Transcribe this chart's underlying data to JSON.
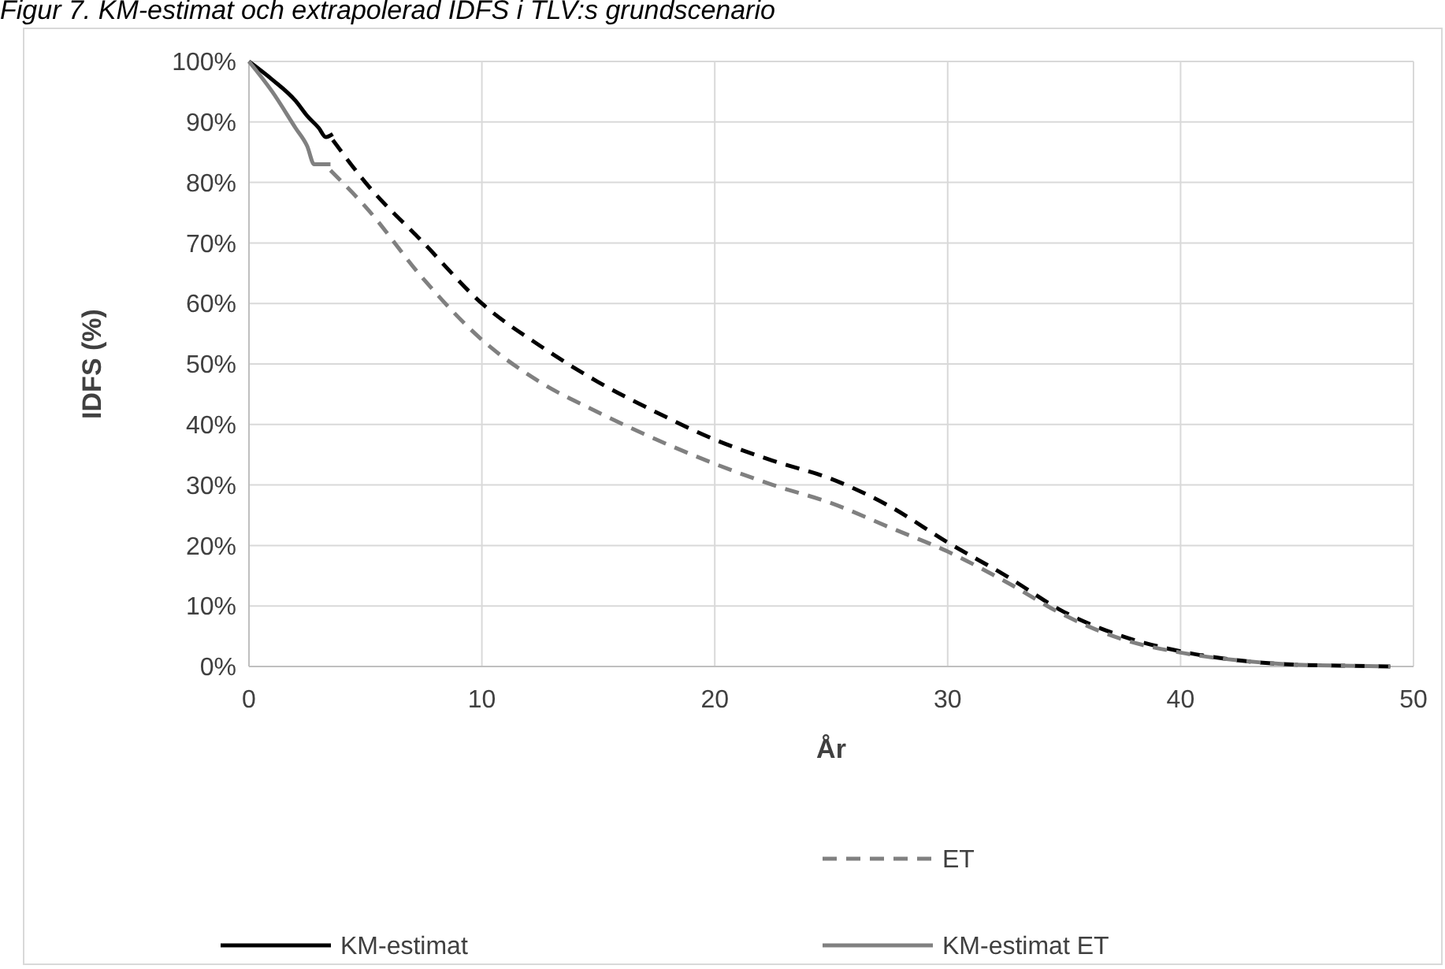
{
  "chart_data": {
    "type": "line",
    "title": "Figur 7. KM-estimat och extrapolerad IDFS i TLV:s grundscenario",
    "xlabel": "År",
    "ylabel": "IDFS (%)",
    "xlim": [
      0,
      50
    ],
    "xticks": [
      0,
      10,
      20,
      30,
      40,
      50
    ],
    "ylim": [
      0,
      100
    ],
    "yticks": [
      {
        "value": 0,
        "label": "0%"
      },
      {
        "value": 10,
        "label": "10%"
      },
      {
        "value": 20,
        "label": "20%"
      },
      {
        "value": 30,
        "label": "30%"
      },
      {
        "value": 40,
        "label": "40%"
      },
      {
        "value": 50,
        "label": "50%"
      },
      {
        "value": 60,
        "label": "60%"
      },
      {
        "value": 70,
        "label": "70%"
      },
      {
        "value": 80,
        "label": "80%"
      },
      {
        "value": 90,
        "label": "90%"
      },
      {
        "value": 100,
        "label": "100%"
      }
    ],
    "grid": true,
    "legend": "bottom",
    "series": [
      {
        "color": "#000000",
        "line_style": "dashed",
        "x": [
          3.6,
          5,
          7.5,
          10,
          12.5,
          15,
          17.5,
          20,
          22.5,
          25,
          27.5,
          30,
          32.5,
          35,
          37.5,
          40,
          42.5,
          45,
          47.5,
          49
        ],
        "values": [
          87,
          80,
          70,
          60,
          53,
          47,
          42,
          37.5,
          34,
          31,
          26.5,
          20.5,
          15,
          9,
          5,
          2.5,
          1,
          0.3,
          0.1,
          0
        ]
      },
      {
        "name": "ET",
        "color": "#808080",
        "line_style": "dashed",
        "x": [
          3.5,
          5,
          7.5,
          10,
          12.5,
          15,
          17.5,
          20,
          22.5,
          25,
          27.5,
          30,
          32.5,
          35,
          37.5,
          40,
          42.5,
          45,
          47.5,
          49
        ],
        "values": [
          82,
          76,
          64,
          54,
          47,
          42,
          37.5,
          33.5,
          30,
          27,
          23,
          19,
          14,
          8.5,
          4.5,
          2.3,
          1,
          0.3,
          0.1,
          0
        ]
      },
      {
        "name": "KM-estimat",
        "color": "#000000",
        "line_style": "solid",
        "x": [
          0,
          1,
          2,
          2.5,
          3,
          3.3,
          3.6
        ],
        "values": [
          100,
          97,
          93.5,
          91,
          89,
          87.5,
          88
        ]
      },
      {
        "name": "KM-estimat ET",
        "color": "#808080",
        "line_style": "solid",
        "x": [
          0,
          1,
          2,
          2.5,
          2.8,
          3.5
        ],
        "values": [
          100,
          95,
          89,
          86,
          83,
          83
        ]
      }
    ]
  }
}
